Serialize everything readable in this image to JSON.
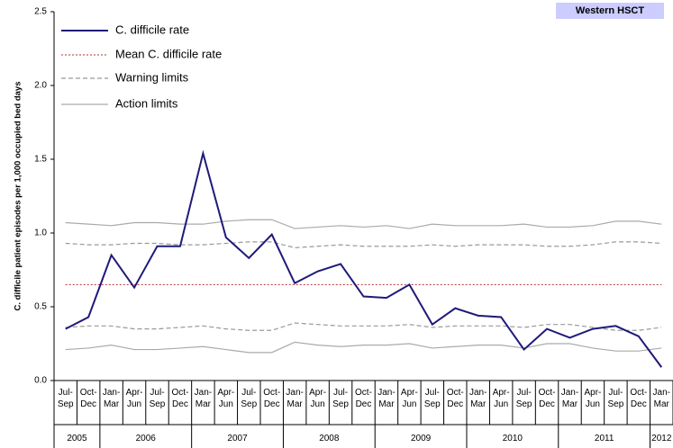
{
  "chart_data": {
    "type": "control",
    "title": "Western HSCT",
    "ylabel": "C. difficile patient episodes per 1,000 occupied bed days",
    "categories": [
      "Jul-Sep",
      "Oct-Dec",
      "Jan-Mar",
      "Apr-Jun",
      "Jul-Sep",
      "Oct-Dec",
      "Jan-Mar",
      "Apr-Jun",
      "Jul-Sep",
      "Oct-Dec",
      "Jan-Mar",
      "Apr-Jun",
      "Jul-Sep",
      "Oct-Dec",
      "Jan-Mar",
      "Apr-Jun",
      "Jul-Sep",
      "Oct-Dec",
      "Jan-Mar",
      "Apr-Jun",
      "Jul-Sep",
      "Oct-Dec",
      "Jan-Mar",
      "Apr-Jun",
      "Jul-Sep",
      "Oct-Dec",
      "Jan-Mar"
    ],
    "years": [
      "2005",
      "2006",
      "2007",
      "2008",
      "2009",
      "2010",
      "2011",
      "2012"
    ],
    "ylim": [
      0,
      2.5
    ],
    "yticks": [
      {
        "value": 0,
        "label": "0.0"
      },
      {
        "value": 0.5,
        "label": "0.5"
      },
      {
        "value": 1,
        "label": "1.0"
      },
      {
        "value": 1.5,
        "label": "1.5"
      },
      {
        "value": 2,
        "label": "2.0"
      },
      {
        "value": 2.5,
        "label": "2.5"
      }
    ],
    "rate": {
      "name": "C. difficile rate",
      "color": "#1f1a7a",
      "values": [
        0.35,
        0.43,
        0.85,
        0.63,
        0.91,
        0.91,
        1.54,
        0.97,
        0.83,
        0.99,
        0.66,
        0.74,
        0.79,
        0.57,
        0.56,
        0.65,
        0.38,
        0.49,
        0.44,
        0.43,
        0.21,
        0.35,
        0.29,
        0.35,
        0.37,
        0.3,
        0.09
      ]
    },
    "mean": {
      "name": "Mean C. difficile rate",
      "color": "#b03030",
      "value": 0.65
    },
    "warning": {
      "name": "Warning limits",
      "color": "#999999",
      "upper": [
        0.93,
        0.92,
        0.92,
        0.93,
        0.93,
        0.92,
        0.92,
        0.93,
        0.94,
        0.94,
        0.9,
        0.91,
        0.92,
        0.91,
        0.91,
        0.91,
        0.92,
        0.91,
        0.92,
        0.92,
        0.92,
        0.91,
        0.91,
        0.92,
        0.94,
        0.94,
        0.93
      ],
      "lower": [
        0.36,
        0.37,
        0.37,
        0.35,
        0.35,
        0.36,
        0.37,
        0.35,
        0.34,
        0.34,
        0.39,
        0.38,
        0.37,
        0.37,
        0.37,
        0.38,
        0.36,
        0.37,
        0.37,
        0.37,
        0.36,
        0.38,
        0.38,
        0.36,
        0.34,
        0.34,
        0.36
      ]
    },
    "action": {
      "name": "Action limits",
      "color": "#aaaaaa",
      "upper": [
        1.07,
        1.06,
        1.05,
        1.07,
        1.07,
        1.06,
        1.06,
        1.08,
        1.09,
        1.09,
        1.03,
        1.04,
        1.05,
        1.04,
        1.05,
        1.03,
        1.06,
        1.05,
        1.05,
        1.05,
        1.06,
        1.04,
        1.04,
        1.05,
        1.08,
        1.08,
        1.06
      ],
      "lower": [
        0.21,
        0.22,
        0.24,
        0.21,
        0.21,
        0.22,
        0.23,
        0.21,
        0.19,
        0.19,
        0.26,
        0.24,
        0.23,
        0.24,
        0.24,
        0.25,
        0.22,
        0.23,
        0.24,
        0.24,
        0.22,
        0.25,
        0.25,
        0.22,
        0.2,
        0.2,
        0.22
      ]
    }
  }
}
